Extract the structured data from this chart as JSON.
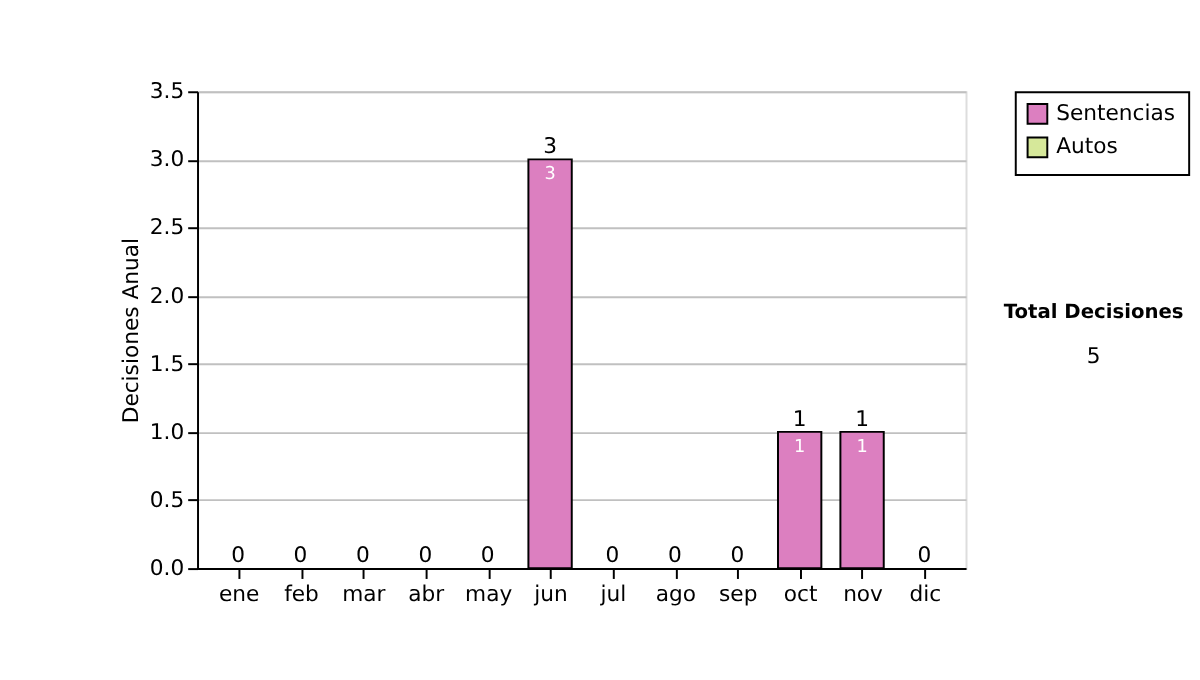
{
  "chart_data": {
    "type": "bar",
    "ylabel": "Decisiones Anual",
    "categories": [
      "ene",
      "feb",
      "mar",
      "abr",
      "may",
      "jun",
      "jul",
      "ago",
      "sep",
      "oct",
      "nov",
      "dic"
    ],
    "series": [
      {
        "name": "Sentencias",
        "color": "#dc7fc0",
        "values": [
          0,
          0,
          0,
          0,
          0,
          3,
          0,
          0,
          0,
          1,
          1,
          0
        ],
        "value_labels": [
          null,
          null,
          null,
          null,
          null,
          "3",
          null,
          null,
          null,
          "1",
          "1",
          null
        ]
      },
      {
        "name": "Autos",
        "color": "#d6e89a",
        "values": [
          0,
          0,
          0,
          0,
          0,
          0,
          0,
          0,
          0,
          0,
          0,
          0
        ]
      }
    ],
    "totals": [
      "0",
      "0",
      "0",
      "0",
      "0",
      "3",
      "0",
      "0",
      "0",
      "1",
      "1",
      "0"
    ],
    "ylim": [
      0,
      3.5
    ],
    "yticks": [
      {
        "value": 0,
        "label": "0.0"
      },
      {
        "value": 0.5,
        "label": "0.5"
      },
      {
        "value": 1,
        "label": "1.0"
      },
      {
        "value": 1.5,
        "label": "1.5"
      },
      {
        "value": 2,
        "label": "2.0"
      },
      {
        "value": 2.5,
        "label": "2.5"
      },
      {
        "value": 3,
        "label": "3.0"
      },
      {
        "value": 3.5,
        "label": "3.5"
      }
    ],
    "grid": "y",
    "legend": "right",
    "annotations": [
      "Total Decisiones",
      "5"
    ]
  }
}
